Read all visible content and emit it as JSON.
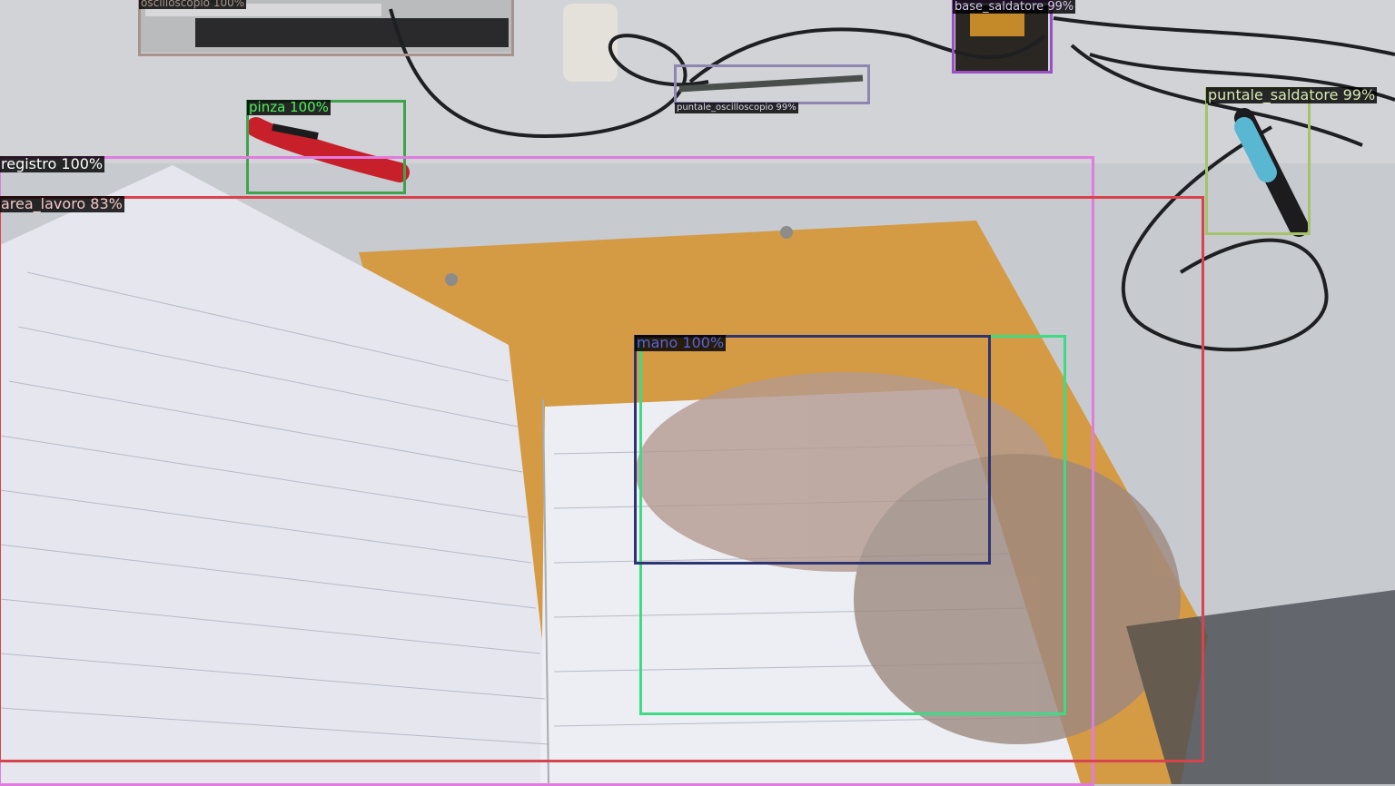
{
  "detections": [
    {
      "label": "oscilloscopio",
      "score": "100%",
      "color": "#a8938c"
    },
    {
      "label": "base_saldatore",
      "score": "99%",
      "color": "#9a4fc4"
    },
    {
      "label": "puntale_oscilloscopio",
      "score": "99%",
      "color": "#8f86b0"
    },
    {
      "label": "pinza",
      "score": "100%",
      "color": "#3fa34d"
    },
    {
      "label": "puntale_saldatore",
      "score": "99%",
      "color": "#a4c46a"
    },
    {
      "label": "registro",
      "score": "100%",
      "color": "#e07be0"
    },
    {
      "label": "area_lavoro",
      "score": "83%",
      "color": "#d9434e"
    },
    {
      "label": "mano",
      "score": "100%",
      "color": "#2e3470"
    },
    {
      "label": "",
      "score": "",
      "color": "#3ddc84"
    }
  ]
}
